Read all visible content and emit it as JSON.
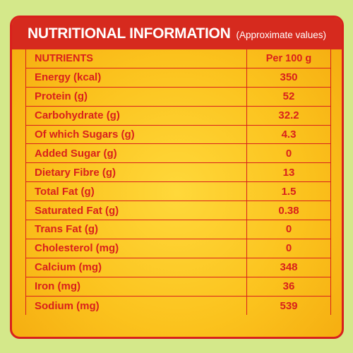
{
  "header": {
    "title": "NUTRITIONAL INFORMATION",
    "subtitle": "(Approximate values)"
  },
  "table": {
    "columns": [
      "NUTRIENTS",
      "Per 100 g"
    ],
    "rows": [
      {
        "name": "Energy (kcal)",
        "value": "350"
      },
      {
        "name": "Protein (g)",
        "value": "52"
      },
      {
        "name": "Carbohydrate (g)",
        "value": "32.2"
      },
      {
        "name": "Of which Sugars (g)",
        "value": "4.3"
      },
      {
        "name": "Added Sugar (g)",
        "value": "0"
      },
      {
        "name": "Dietary Fibre (g)",
        "value": "13"
      },
      {
        "name": "Total Fat (g)",
        "value": "1.5"
      },
      {
        "name": "Saturated Fat (g)",
        "value": "0.38"
      },
      {
        "name": "Trans Fat (g)",
        "value": "0"
      },
      {
        "name": "Cholesterol (mg)",
        "value": "0"
      },
      {
        "name": "Calcium (mg)",
        "value": "348"
      },
      {
        "name": "Iron (mg)",
        "value": "36"
      },
      {
        "name": "Sodium (mg)",
        "value": "539"
      }
    ]
  },
  "colors": {
    "background": "#d4e88a",
    "panel": "#fbc21d",
    "accent_red": "#d9201c",
    "header_text": "#ffffff"
  }
}
